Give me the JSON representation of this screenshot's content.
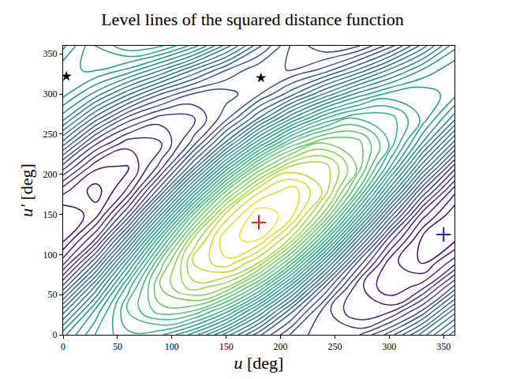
{
  "chart_data": {
    "type": "contour",
    "title": "Level lines of the squared distance function",
    "x_label": "u [deg]",
    "y_label": "u′ [deg]",
    "color": "viridis",
    "grid": false,
    "x": [
      0,
      30,
      60,
      90,
      120,
      150,
      180,
      210,
      240,
      270,
      300,
      330,
      360
    ],
    "y": [
      0,
      30,
      60,
      90,
      120,
      150,
      180,
      210,
      240,
      270,
      300,
      330,
      360
    ],
    "z": [
      [
        5.42,
        6.27,
        6.69,
        6.55,
        5.89,
        4.89,
        3.82,
        2.96,
        2.55,
        2.69,
        3.35,
        4.34,
        5.42
      ],
      [
        4.36,
        5.83,
        7.03,
        7.65,
        7.51,
        6.65,
        5.3,
        3.83,
        2.63,
        2.01,
        2.15,
        3.01,
        4.36
      ],
      [
        3.07,
        4.81,
        6.64,
        8.04,
        8.66,
        8.31,
        7.11,
        5.36,
        3.54,
        2.13,
        1.52,
        1.86,
        3.07
      ],
      [
        1.89,
        3.5,
        5.6,
        7.62,
        9.03,
        9.44,
        8.75,
        7.14,
        5.05,
        3.02,
        1.62,
        1.2,
        1.89
      ],
      [
        1.15,
        2.24,
        4.2,
        6.5,
        8.52,
        9.72,
        9.79,
        8.7,
        6.74,
        4.44,
        2.42,
        1.22,
        1.15
      ],
      [
        1.04,
        1.37,
        2.81,
        4.97,
        7.27,
        9.09,
        9.95,
        9.61,
        8.17,
        6.01,
        3.72,
        1.9,
        1.04
      ],
      [
        1.59,
        1.13,
        1.81,
        3.46,
        5.61,
        7.71,
        9.18,
        9.64,
        8.95,
        7.31,
        5.15,
        3.06,
        1.59
      ],
      [
        2.65,
        1.57,
        1.47,
        2.35,
        3.99,
        5.95,
        7.7,
        8.77,
        8.88,
        7.99,
        6.35,
        4.39,
        2.65
      ],
      [
        3.93,
        2.59,
        1.87,
        1.96,
        2.84,
        4.28,
        5.89,
        7.24,
        7.96,
        7.87,
        6.98,
        5.54,
        3.93
      ],
      [
        5.11,
        3.9,
        2.9,
        2.38,
        2.48,
        3.16,
        4.25,
        5.46,
        6.46,
        6.98,
        6.88,
        6.2,
        5.11
      ],
      [
        5.85,
        5.16,
        4.3,
        3.5,
        2.98,
        2.88,
        3.21,
        3.9,
        4.76,
        5.56,
        6.08,
        6.19,
        5.85
      ],
      [
        5.96,
        6.03,
        5.69,
        5.03,
        4.23,
        3.51,
        3.05,
        2.99,
        3.33,
        3.99,
        4.78,
        5.51,
        5.96
      ],
      [
        5.42,
        6.27,
        6.69,
        6.55,
        5.89,
        4.89,
        3.82,
        2.96,
        2.55,
        2.69,
        3.35,
        4.34,
        5.42
      ]
    ],
    "levels": {
      "start": 1,
      "end": 10,
      "size": 0.25
    },
    "xlim": [
      0,
      360
    ],
    "ylim": [
      0,
      360
    ],
    "xticks": [
      0,
      50,
      100,
      150,
      200,
      250,
      300,
      350
    ],
    "yticks": [
      0,
      50,
      100,
      150,
      200,
      250,
      300,
      350
    ],
    "points": [
      {
        "x": [
          180
        ],
        "y": [
          140
        ],
        "color": "#e41a1c",
        "marker": "cross"
      },
      {
        "x": [
          350
        ],
        "y": [
          125
        ],
        "color": "#1f1fd0",
        "marker": "cross"
      },
      {
        "x": [
          3,
          182
        ],
        "y": [
          322,
          320
        ],
        "color": "#000000",
        "marker": "star"
      }
    ]
  }
}
